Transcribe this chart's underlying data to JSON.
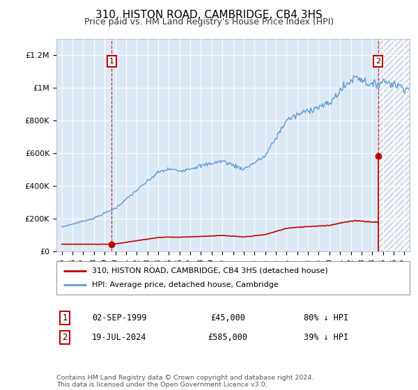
{
  "title": "310, HISTON ROAD, CAMBRIDGE, CB4 3HS",
  "subtitle": "Price paid vs. HM Land Registry's House Price Index (HPI)",
  "background_color": "#ffffff",
  "plot_bg_color": "#dce9f5",
  "hpi_line_color": "#5b9bd5",
  "price_line_color": "#c00000",
  "marker_color": "#c00000",
  "annotation_box_color": "#c00000",
  "ylim": [
    0,
    1300000
  ],
  "yticks": [
    0,
    200000,
    400000,
    600000,
    800000,
    1000000,
    1200000
  ],
  "ytick_labels": [
    "£0",
    "£200K",
    "£400K",
    "£600K",
    "£800K",
    "£1M",
    "£1.2M"
  ],
  "sale1_year": 1999.67,
  "sale1_price": 45000,
  "sale1_label": "1",
  "sale2_year": 2024.54,
  "sale2_price": 585000,
  "sale2_label": "2",
  "legend_line1": "310, HISTON ROAD, CAMBRIDGE, CB4 3HS (detached house)",
  "legend_line2": "HPI: Average price, detached house, Cambridge",
  "table_row1_num": "1",
  "table_row1_date": "02-SEP-1999",
  "table_row1_price": "£45,000",
  "table_row1_hpi": "80% ↓ HPI",
  "table_row2_num": "2",
  "table_row2_date": "19-JUL-2024",
  "table_row2_price": "£585,000",
  "table_row2_hpi": "39% ↓ HPI",
  "footer": "Contains HM Land Registry data © Crown copyright and database right 2024.\nThis data is licensed under the Open Government Licence v3.0.",
  "xmin": 1994.5,
  "xmax": 2027.5,
  "hatch_start": 2024.58
}
